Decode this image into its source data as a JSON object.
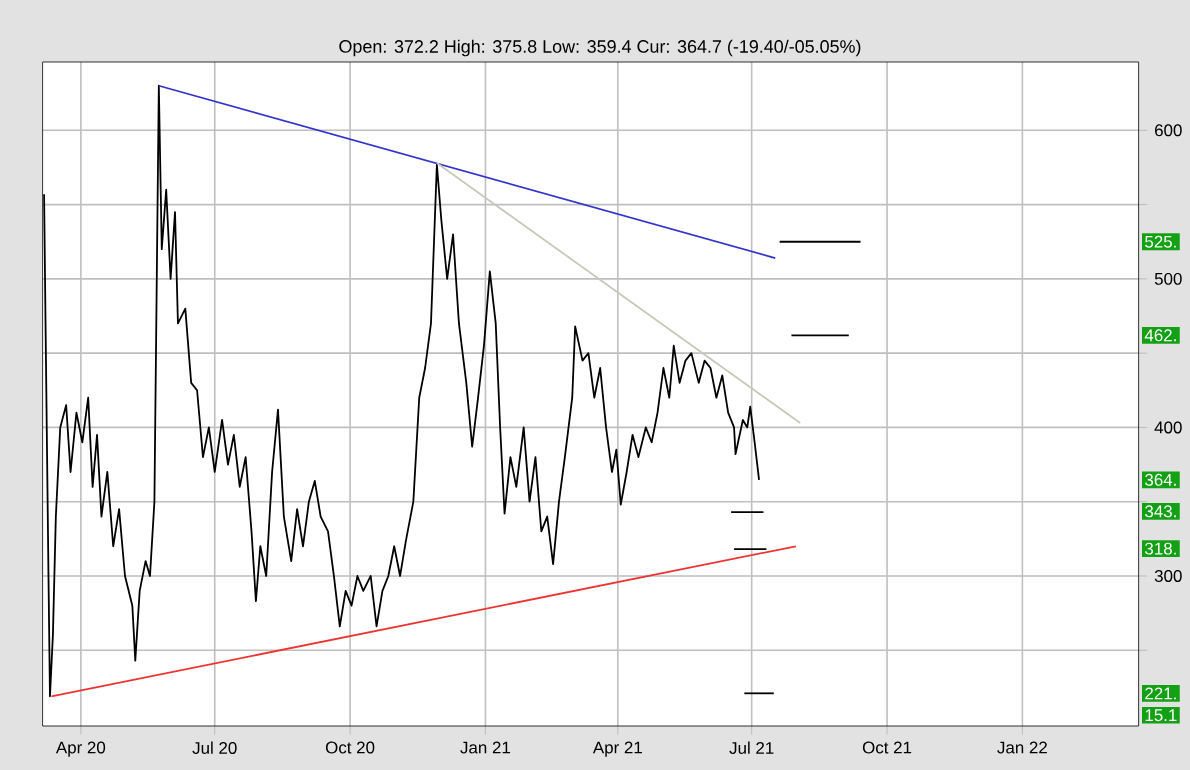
{
  "chart_data": {
    "type": "line",
    "subtitle": "Open: 372.2 High: 375.8 Low: 359.4 Cur: 364.7 (-19.40/-05.05%)",
    "xlim": [
      "2020-03-06",
      "2022-03-21"
    ],
    "xticks": [
      {
        "value": "2020-04-01",
        "label": "Apr 20"
      },
      {
        "value": "2020-07-01",
        "label": "Jul 20"
      },
      {
        "value": "2020-10-01",
        "label": "Oct 20"
      },
      {
        "value": "2021-01-01",
        "label": "Jan 21"
      },
      {
        "value": "2021-04-01",
        "label": "Apr 21"
      },
      {
        "value": "2021-07-01",
        "label": "Jul 21"
      },
      {
        "value": "2021-10-01",
        "label": "Oct 21"
      },
      {
        "value": "2022-01-01",
        "label": "Jan 22"
      }
    ],
    "ylim": [
      199,
      646
    ],
    "yticks": [
      {
        "value": 250,
        "label": null
      },
      300,
      {
        "value": 350,
        "label": null
      },
      400,
      {
        "value": 450,
        "label": null
      },
      500,
      {
        "value": 550,
        "label": null
      },
      600
    ],
    "grid": true,
    "series": [
      {
        "color": "#000000",
        "x": [
          "2020-03-07",
          "2020-03-08",
          "2020-03-10",
          "2020-03-11",
          "2020-03-13",
          "2020-03-15",
          "2020-03-18",
          "2020-03-22",
          "2020-03-25",
          "2020-03-29",
          "2020-04-02",
          "2020-04-06",
          "2020-04-09",
          "2020-04-12",
          "2020-04-15",
          "2020-04-19",
          "2020-04-23",
          "2020-04-27",
          "2020-05-01",
          "2020-05-06",
          "2020-05-08",
          "2020-05-11",
          "2020-05-15",
          "2020-05-18",
          "2020-05-21",
          "2020-05-24",
          "2020-05-26",
          "2020-05-29",
          "2020-06-01",
          "2020-06-04",
          "2020-06-06",
          "2020-06-11",
          "2020-06-15",
          "2020-06-19",
          "2020-06-23",
          "2020-06-27",
          "2020-07-01",
          "2020-07-06",
          "2020-07-10",
          "2020-07-14",
          "2020-07-18",
          "2020-07-22",
          "2020-07-26",
          "2020-07-29",
          "2020-08-01",
          "2020-08-05",
          "2020-08-09",
          "2020-08-13",
          "2020-08-17",
          "2020-08-22",
          "2020-08-26",
          "2020-08-30",
          "2020-09-03",
          "2020-09-07",
          "2020-09-11",
          "2020-09-16",
          "2020-09-20",
          "2020-09-24",
          "2020-09-28",
          "2020-10-02",
          "2020-10-06",
          "2020-10-10",
          "2020-10-15",
          "2020-10-19",
          "2020-10-23",
          "2020-10-27",
          "2020-10-31",
          "2020-11-04",
          "2020-11-08",
          "2020-11-13",
          "2020-11-17",
          "2020-11-21",
          "2020-11-25",
          "2020-11-29",
          "2020-12-02",
          "2020-12-06",
          "2020-12-10",
          "2020-12-14",
          "2020-12-19",
          "2020-12-23",
          "2020-12-27",
          "2020-12-31",
          "2021-01-04",
          "2021-01-08",
          "2021-01-11",
          "2021-01-14",
          "2021-01-18",
          "2021-01-22",
          "2021-01-27",
          "2021-01-31",
          "2021-02-04",
          "2021-02-08",
          "2021-02-12",
          "2021-02-16",
          "2021-02-20",
          "2021-02-24",
          "2021-03-01",
          "2021-03-03",
          "2021-03-08",
          "2021-03-12",
          "2021-03-16",
          "2021-03-20",
          "2021-03-24",
          "2021-03-28",
          "2021-03-31",
          "2021-04-03",
          "2021-04-07",
          "2021-04-11",
          "2021-04-15",
          "2021-04-20",
          "2021-04-24",
          "2021-04-28",
          "2021-05-02",
          "2021-05-06",
          "2021-05-09",
          "2021-05-13",
          "2021-05-17",
          "2021-05-21",
          "2021-05-26",
          "2021-05-30",
          "2021-06-03",
          "2021-06-07",
          "2021-06-11",
          "2021-06-15",
          "2021-06-19",
          "2021-06-20",
          "2021-06-25",
          "2021-06-28",
          "2021-06-30",
          "2021-07-03",
          "2021-07-06"
        ],
        "values": [
          557,
          470,
          300,
          219,
          260,
          340,
          400,
          415,
          370,
          410,
          390,
          420,
          360,
          395,
          340,
          370,
          320,
          345,
          300,
          280,
          243,
          290,
          310,
          300,
          350,
          630,
          520,
          560,
          500,
          545,
          470,
          480,
          430,
          425,
          380,
          400,
          370,
          405,
          375,
          395,
          360,
          380,
          330,
          283,
          320,
          300,
          370,
          412,
          340,
          310,
          345,
          320,
          350,
          364,
          340,
          330,
          300,
          266,
          290,
          280,
          300,
          290,
          300,
          266,
          290,
          300,
          320,
          300,
          324,
          350,
          420,
          440,
          470,
          577,
          540,
          500,
          530,
          470,
          430,
          387,
          420,
          455,
          505,
          470,
          400,
          342,
          380,
          360,
          400,
          350,
          380,
          330,
          340,
          308,
          350,
          380,
          420,
          468,
          445,
          450,
          420,
          440,
          400,
          370,
          385,
          348,
          370,
          395,
          380,
          400,
          390,
          410,
          440,
          420,
          455,
          430,
          445,
          450,
          430,
          445,
          440,
          420,
          435,
          410,
          400,
          382,
          405,
          400,
          414,
          390,
          364.7
        ]
      },
      {
        "color": "#3333cc",
        "x": [
          "2020-05-24",
          "2021-07-17"
        ],
        "values": [
          630,
          514
        ]
      },
      {
        "color": "#c8c8b8",
        "x": [
          "2020-11-29",
          "2021-08-03"
        ],
        "values": [
          578,
          403
        ]
      },
      {
        "color": "#ee3333",
        "x": [
          "2020-03-12",
          "2021-07-31"
        ],
        "values": [
          219,
          320
        ]
      },
      {
        "color": "#000000",
        "x": [
          "2021-07-20",
          "2021-09-13"
        ],
        "values": [
          525,
          525
        ]
      },
      {
        "color": "#000000",
        "x": [
          "2021-07-28",
          "2021-09-05"
        ],
        "values": [
          462,
          462
        ]
      },
      {
        "color": "#000000",
        "x": [
          "2021-06-17",
          "2021-07-09"
        ],
        "values": [
          343,
          343
        ]
      },
      {
        "color": "#000000",
        "x": [
          "2021-06-19",
          "2021-07-11"
        ],
        "values": [
          318,
          318
        ]
      },
      {
        "color": "#000000",
        "x": [
          "2021-06-26",
          "2021-07-16"
        ],
        "values": [
          221,
          221
        ]
      }
    ],
    "annotations": [
      {
        "text": "525.",
        "y": 525
      },
      {
        "text": "462.",
        "y": 462
      },
      {
        "text": "364.",
        "y": 364.7
      },
      {
        "text": "343.",
        "y": 343.5
      },
      {
        "text": "318.",
        "y": 318.4
      },
      {
        "text": "221.",
        "y": 221
      },
      "15.1"
    ]
  }
}
